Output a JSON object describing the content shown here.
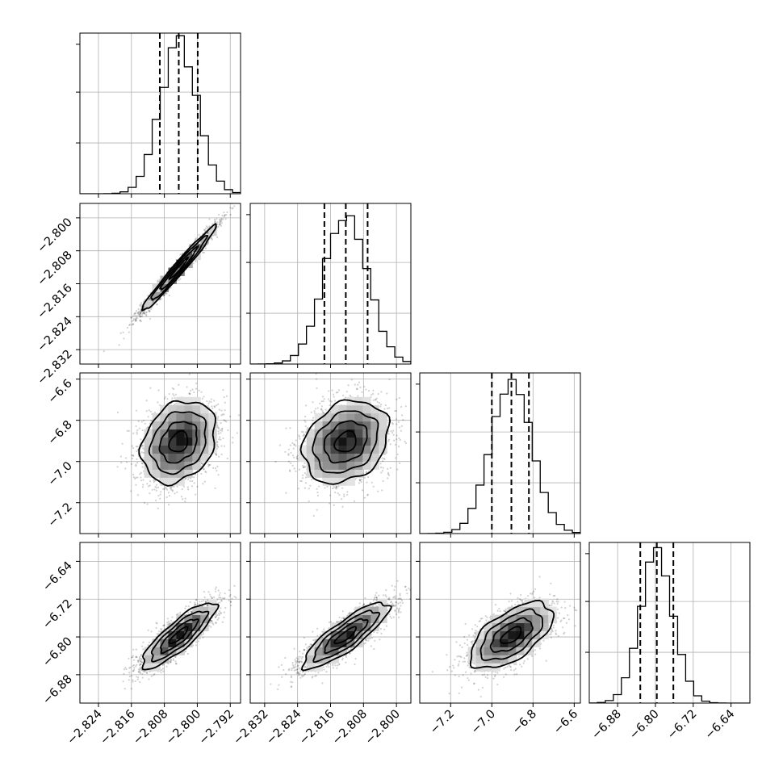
{
  "chart_data": {
    "type": "corner",
    "grid": true,
    "params": [
      {
        "range": [
          -2.8285,
          -2.7895
        ],
        "mean": -2.8045,
        "sd": 0.0045,
        "quantiles": [
          -2.8091,
          -2.8045,
          -2.7999
        ],
        "ticks": [
          -2.824,
          -2.816,
          -2.808,
          -2.8,
          -2.792
        ],
        "tick_labels": [
          "−2.824",
          "−2.816",
          "−2.808",
          "−2.800",
          "−2.792"
        ]
      },
      {
        "range": [
          -2.8355,
          -2.7965
        ],
        "mean": -2.8123,
        "sd": 0.0052,
        "quantiles": [
          -2.8175,
          -2.8123,
          -2.807
        ],
        "ticks": [
          -2.832,
          -2.824,
          -2.816,
          -2.808,
          -2.8
        ],
        "tick_labels": [
          "−2.832",
          "−2.824",
          "−2.816",
          "−2.808",
          "−2.800"
        ]
      },
      {
        "range": [
          -7.35,
          -6.57
        ],
        "mean": -6.905,
        "sd": 0.1,
        "quantiles": [
          -7.0,
          -6.905,
          -6.82
        ],
        "ticks": [
          -7.2,
          -7.0,
          -6.8,
          -6.6
        ],
        "tick_labels": [
          "−7.2",
          "−7.0",
          "−6.8",
          "−6.6"
        ]
      },
      {
        "range": [
          -6.94,
          -6.6
        ],
        "mean": -6.797,
        "sd": 0.035,
        "quantiles": [
          -6.832,
          -6.797,
          -6.762
        ],
        "ticks": [
          -6.88,
          -6.8,
          -6.72,
          -6.64
        ],
        "tick_labels": [
          "−6.88",
          "−6.80",
          "−6.72",
          "−6.64"
        ]
      }
    ],
    "correlations": {
      "1-0": 0.98,
      "2-0": 0.25,
      "2-1": 0.25,
      "3-0": 0.85,
      "3-1": 0.85,
      "3-2": 0.6
    },
    "quantile_line_style": "dashed",
    "contour_levels_sigma": [
      0.5,
      1.0,
      1.5,
      2.0
    ]
  }
}
